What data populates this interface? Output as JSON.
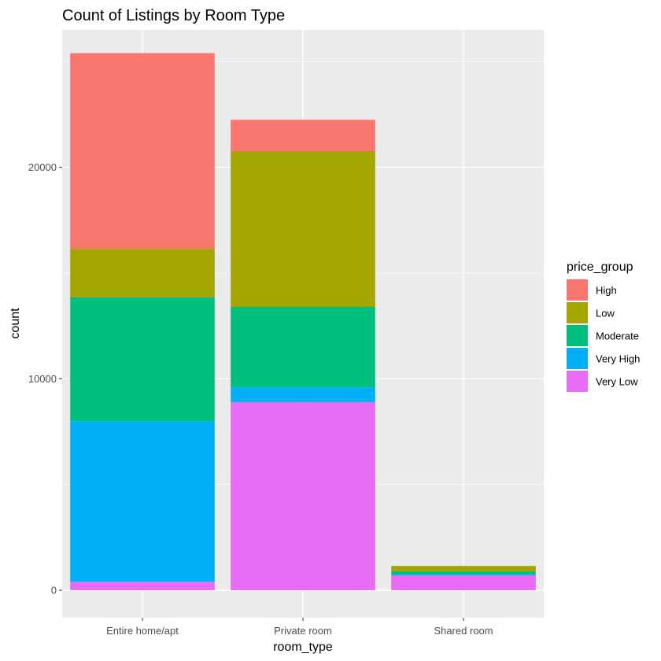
{
  "chart_data": {
    "type": "bar",
    "stacked": true,
    "title": "Count of Listings by Room Type",
    "xlabel": "room_type",
    "ylabel": "count",
    "categories": [
      "Entire home/apt",
      "Private room",
      "Shared room"
    ],
    "ylim": [
      -1300,
      26500
    ],
    "yticks": [
      0,
      10000,
      20000
    ],
    "ytick_labels": [
      "0",
      "10000",
      "20000"
    ],
    "legend_title": "price_group",
    "legend_position": "right",
    "grid": true,
    "series": [
      {
        "name": "High",
        "color": "#F8766D",
        "values": [
          9250,
          1500,
          0
        ]
      },
      {
        "name": "Low",
        "color": "#A3A500",
        "values": [
          2300,
          7350,
          250
        ]
      },
      {
        "name": "Moderate",
        "color": "#00BF7D",
        "values": [
          5850,
          3800,
          150
        ]
      },
      {
        "name": "Very High",
        "color": "#00B0F6",
        "values": [
          7600,
          700,
          50
        ]
      },
      {
        "name": "Very Low",
        "color": "#E76BF3",
        "values": [
          400,
          8900,
          700
        ]
      }
    ],
    "stack_order_bottom_to_top": [
      "Very Low",
      "Very High",
      "Moderate",
      "Low",
      "High"
    ]
  }
}
